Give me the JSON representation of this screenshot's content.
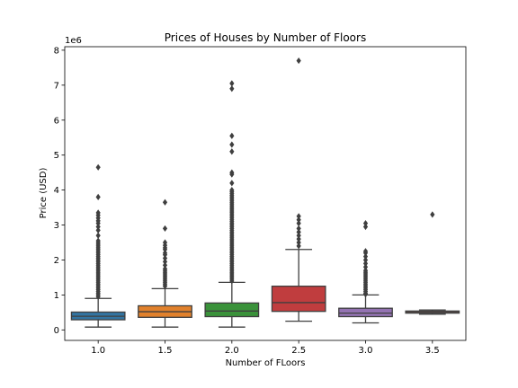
{
  "chart_data": {
    "type": "box",
    "title": "Prices of Houses by Number of Floors",
    "xlabel": "Number of FLoors",
    "ylabel": "Price (USD)",
    "y_offset_label": "1e6",
    "ylim": [
      -0.3,
      8.1
    ],
    "yticks": [
      0,
      1,
      2,
      3,
      4,
      5,
      6,
      7,
      8
    ],
    "grid": false,
    "legend": "none",
    "unit_multiplier": 1000000,
    "series": [
      {
        "category": "1.0",
        "color": "#3274a1",
        "whisker_low": 0.08,
        "q1": 0.29,
        "median": 0.39,
        "q3": 0.51,
        "whisker_high": 0.9,
        "fliers": [
          0.95,
          1.0,
          1.05,
          1.1,
          1.15,
          1.2,
          1.25,
          1.3,
          1.35,
          1.4,
          1.45,
          1.5,
          1.55,
          1.6,
          1.65,
          1.7,
          1.75,
          1.8,
          1.85,
          1.9,
          1.95,
          2.0,
          2.05,
          2.1,
          2.15,
          2.2,
          2.25,
          2.3,
          2.35,
          2.4,
          2.45,
          2.5,
          2.55,
          2.7,
          2.85,
          2.95,
          3.05,
          3.12,
          3.2,
          3.28,
          3.35,
          3.8,
          4.65
        ]
      },
      {
        "category": "1.5",
        "color": "#e1812c",
        "whisker_low": 0.08,
        "q1": 0.36,
        "median": 0.52,
        "q3": 0.69,
        "whisker_high": 1.18,
        "fliers": [
          1.25,
          1.3,
          1.35,
          1.4,
          1.45,
          1.5,
          1.55,
          1.6,
          1.65,
          1.7,
          1.75,
          1.85,
          1.95,
          2.05,
          2.15,
          2.2,
          2.3,
          2.35,
          2.42,
          2.5,
          2.9,
          3.65
        ]
      },
      {
        "category": "2.0",
        "color": "#3a923a",
        "whisker_low": 0.08,
        "q1": 0.38,
        "median": 0.54,
        "q3": 0.77,
        "whisker_high": 1.36,
        "fliers": [
          1.4,
          1.45,
          1.5,
          1.55,
          1.6,
          1.65,
          1.7,
          1.75,
          1.8,
          1.85,
          1.9,
          1.95,
          2.0,
          2.05,
          2.1,
          2.15,
          2.2,
          2.25,
          2.3,
          2.35,
          2.4,
          2.45,
          2.5,
          2.55,
          2.6,
          2.65,
          2.7,
          2.75,
          2.8,
          2.85,
          2.9,
          2.95,
          3.0,
          3.05,
          3.1,
          3.15,
          3.2,
          3.25,
          3.3,
          3.35,
          3.4,
          3.45,
          3.5,
          3.55,
          3.6,
          3.65,
          3.7,
          3.75,
          3.8,
          3.85,
          3.9,
          3.95,
          4.0,
          4.2,
          4.45,
          4.5,
          5.1,
          5.3,
          5.55,
          6.9,
          7.05
        ]
      },
      {
        "category": "2.5",
        "color": "#c03d3e",
        "whisker_low": 0.25,
        "q1": 0.53,
        "median": 0.78,
        "q3": 1.25,
        "whisker_high": 2.3,
        "fliers": [
          2.4,
          2.5,
          2.6,
          2.7,
          2.8,
          2.9,
          3.05,
          3.15,
          3.25,
          7.7
        ]
      },
      {
        "category": "3.0",
        "color": "#9372b2",
        "whisker_low": 0.2,
        "q1": 0.38,
        "median": 0.48,
        "q3": 0.62,
        "whisker_high": 1.0,
        "fliers": [
          1.02,
          1.05,
          1.1,
          1.15,
          1.2,
          1.25,
          1.3,
          1.35,
          1.4,
          1.45,
          1.5,
          1.55,
          1.6,
          1.65,
          1.7,
          1.8,
          1.9,
          2.0,
          2.1,
          2.2,
          2.25,
          2.95,
          3.05
        ]
      },
      {
        "category": "3.5",
        "color": "#845b53",
        "whisker_low": 0.45,
        "q1": 0.48,
        "median": 0.5,
        "q3": 0.54,
        "whisker_high": 0.57,
        "fliers": [
          3.3
        ]
      }
    ]
  }
}
